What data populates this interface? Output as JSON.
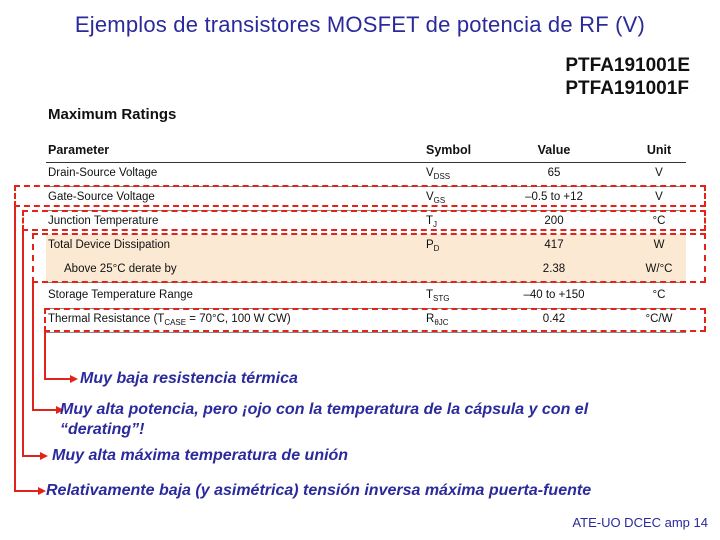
{
  "slide": {
    "title": "Ejemplos de transistores MOSFET de potencia de  RF (V)",
    "footer": "ATE-UO DCEC amp 14"
  },
  "parts": [
    "PTFA191001E",
    "PTFA191001F"
  ],
  "ratings": {
    "title": "Maximum Ratings",
    "headers": {
      "parameter": "Parameter",
      "symbol": "Symbol",
      "value": "Value",
      "unit": "Unit"
    },
    "rows": [
      {
        "parameter": "Drain-Source Voltage",
        "symbol": "V",
        "symbol_sub": "DSS",
        "value": "65",
        "unit": "V"
      },
      {
        "parameter": "Gate-Source Voltage",
        "symbol": "V",
        "symbol_sub": "GS",
        "value": "–0.5 to +12",
        "unit": "V"
      },
      {
        "parameter": "Junction Temperature",
        "symbol": "T",
        "symbol_sub": "J",
        "value": "200",
        "unit": "°C"
      },
      {
        "parameter": "Total Device Dissipation",
        "symbol": "P",
        "symbol_sub": "D",
        "value": "417",
        "unit": "W"
      },
      {
        "parameter": "Above 25°C derate by",
        "symbol": "",
        "symbol_sub": "",
        "value": "2.38",
        "unit": "W/°C"
      },
      {
        "parameter": "Storage Temperature Range",
        "symbol": "T",
        "symbol_sub": "STG",
        "value": "–40 to +150",
        "unit": "°C"
      },
      {
        "parameter_pre": "Thermal Resistance (T",
        "parameter_sub": "CASE",
        "parameter_post": " = 70°C, 100 W CW)",
        "symbol": "R",
        "symbol_sub": "θJC",
        "value": "0.42",
        "unit": "°C/W"
      }
    ]
  },
  "annotations": {
    "thermal": "Muy baja resistencia térmica",
    "power": "Muy alta potencia, pero ¡ojo con la temperatura de la cápsula y con el “derating”!",
    "junction": "Muy alta máxima temperatura de unión",
    "gate": "Relativamente baja (y asimétrica) tensión inversa máxima puerta-fuente"
  },
  "colors": {
    "title": "#2a2a9c",
    "highlight": "#e2231a",
    "shade": "#fbe9d4"
  }
}
